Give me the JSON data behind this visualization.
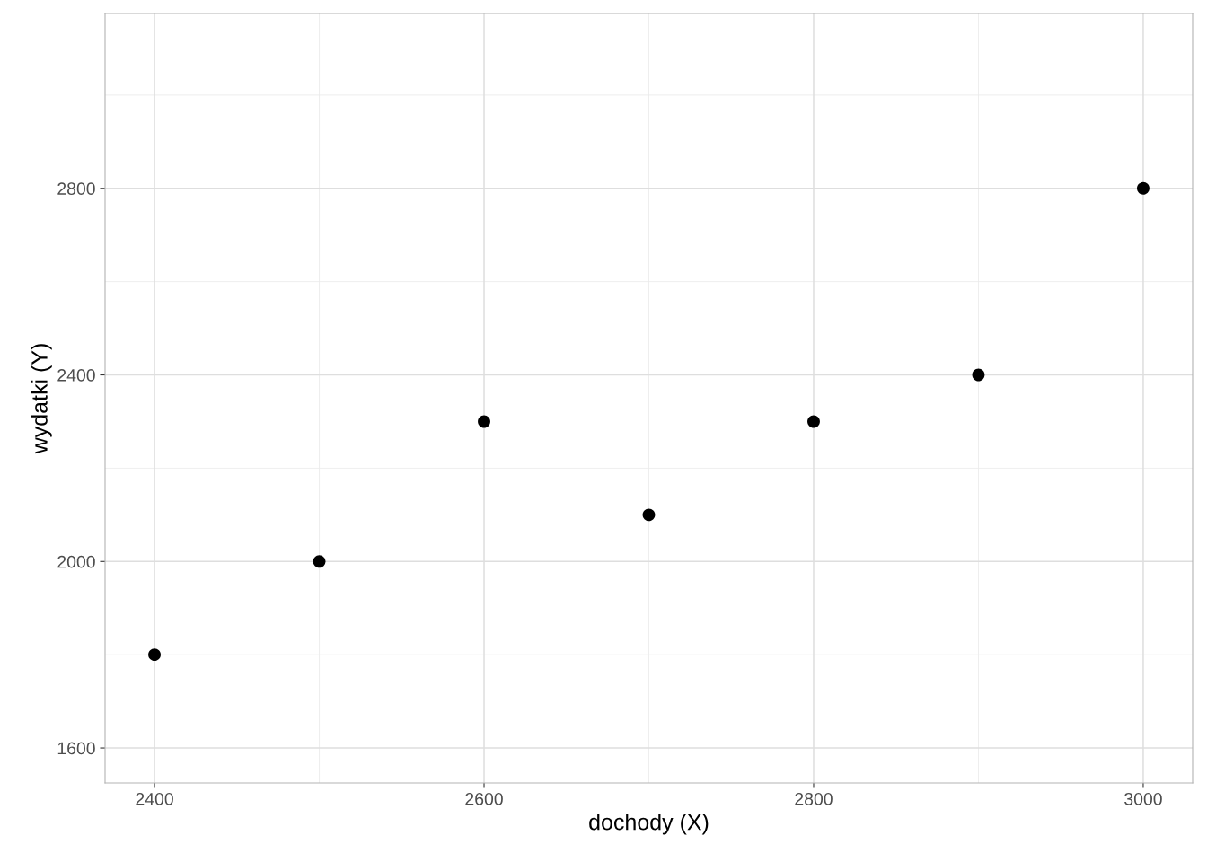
{
  "chart_data": {
    "type": "scatter",
    "xlabel": "dochody (X)",
    "ylabel": "wydatki (Y)",
    "x": [
      2400,
      2500,
      2600,
      2700,
      2800,
      2900,
      3000
    ],
    "series": [
      {
        "color": "#000000",
        "values": [
          1800,
          2000,
          2300,
          2100,
          2300,
          2400,
          2800
        ]
      }
    ],
    "xlim": [
      2370,
      3030
    ],
    "xticks": [
      2400,
      2600,
      2800,
      3000
    ],
    "ylim": [
      1525,
      3175
    ],
    "yticks": [
      1600,
      2000,
      2400,
      2800
    ],
    "grid": true,
    "marker": "circle"
  }
}
